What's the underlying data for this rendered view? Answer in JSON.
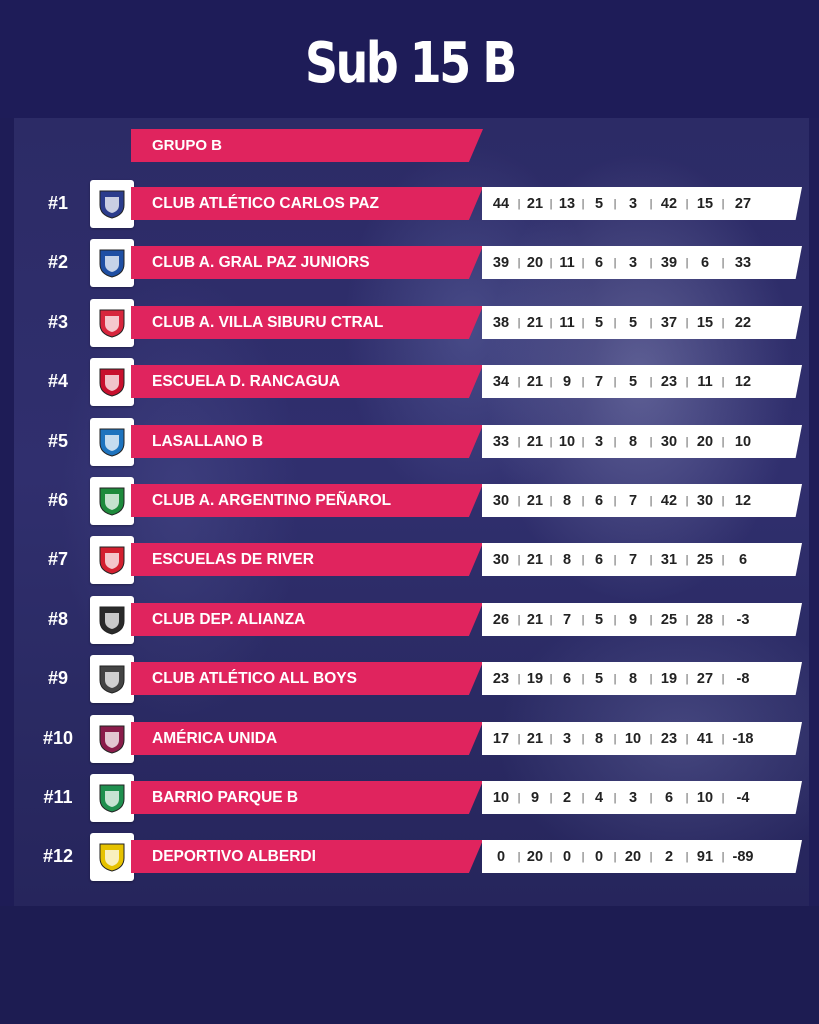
{
  "header": {
    "title": "Sub 15 B"
  },
  "group": {
    "label": "GRUPO B"
  },
  "chart_data": {
    "type": "table",
    "title": "Sub 15 B",
    "subtitle": "GRUPO B",
    "columns": [
      "",
      "",
      "",
      "",
      "",
      "",
      "",
      ""
    ],
    "rows": [
      {
        "rank": "#1",
        "team": "CLUB ATLÉTICO CARLOS PAZ",
        "badge": "carlos-paz-badge-icon",
        "badge_color": "#2b3c8c",
        "stats": [
          44,
          21,
          13,
          5,
          3,
          42,
          15,
          27
        ]
      },
      {
        "rank": "#2",
        "team": "CLUB A. GRAL PAZ JUNIORS",
        "badge": "gral-paz-badge-icon",
        "badge_color": "#1f4fa3",
        "stats": [
          39,
          20,
          11,
          6,
          3,
          39,
          6,
          33
        ]
      },
      {
        "rank": "#3",
        "team": "CLUB A. VILLA SIBURU CTRAL",
        "badge": "villa-siburu-badge-icon",
        "badge_color": "#d7263d",
        "stats": [
          38,
          21,
          11,
          5,
          5,
          37,
          15,
          22
        ]
      },
      {
        "rank": "#4",
        "team": "ESCUELA D. RANCAGUA",
        "badge": "rancagua-badge-icon",
        "badge_color": "#c8102e",
        "stats": [
          34,
          21,
          9,
          7,
          5,
          23,
          11,
          12
        ]
      },
      {
        "rank": "#5",
        "team": "LASALLANO B",
        "badge": "lasallano-badge-icon",
        "badge_color": "#1e73be",
        "stats": [
          33,
          21,
          10,
          3,
          8,
          30,
          20,
          10
        ]
      },
      {
        "rank": "#6",
        "team": "CLUB A. ARGENTINO PEÑAROL",
        "badge": "penarol-badge-icon",
        "badge_color": "#1e8a3c",
        "stats": [
          30,
          21,
          8,
          6,
          7,
          42,
          30,
          12
        ]
      },
      {
        "rank": "#7",
        "team": "ESCUELAS DE RIVER",
        "badge": "river-badge-icon",
        "badge_color": "#d31f2f",
        "stats": [
          30,
          21,
          8,
          6,
          7,
          31,
          25,
          6
        ]
      },
      {
        "rank": "#8",
        "team": "CLUB DEP. ALIANZA",
        "badge": "alianza-badge-icon",
        "badge_color": "#2a2a2a",
        "stats": [
          26,
          21,
          7,
          5,
          9,
          25,
          28,
          -3
        ]
      },
      {
        "rank": "#9",
        "team": "CLUB ATLÉTICO ALL BOYS",
        "badge": "all-boys-badge-icon",
        "badge_color": "#444444",
        "stats": [
          23,
          19,
          6,
          5,
          8,
          19,
          27,
          -8
        ]
      },
      {
        "rank": "#10",
        "team": "AMÉRICA UNIDA",
        "badge": "america-unida-badge-icon",
        "badge_color": "#8a1c4a",
        "stats": [
          17,
          21,
          3,
          8,
          10,
          23,
          41,
          -18
        ]
      },
      {
        "rank": "#11",
        "team": "BARRIO PARQUE B",
        "badge": "barrio-parque-badge-icon",
        "badge_color": "#1f8f4e",
        "stats": [
          10,
          9,
          2,
          4,
          3,
          6,
          10,
          -4
        ]
      },
      {
        "rank": "#12",
        "team": "DEPORTIVO ALBERDI",
        "badge": "alberdi-badge-icon",
        "badge_color": "#e6c200",
        "stats": [
          0,
          20,
          0,
          0,
          20,
          2,
          91,
          -89
        ]
      }
    ]
  },
  "colors": {
    "accent": "#e0245e",
    "background": "#1d1c52",
    "stats_bg": "#ffffff"
  }
}
